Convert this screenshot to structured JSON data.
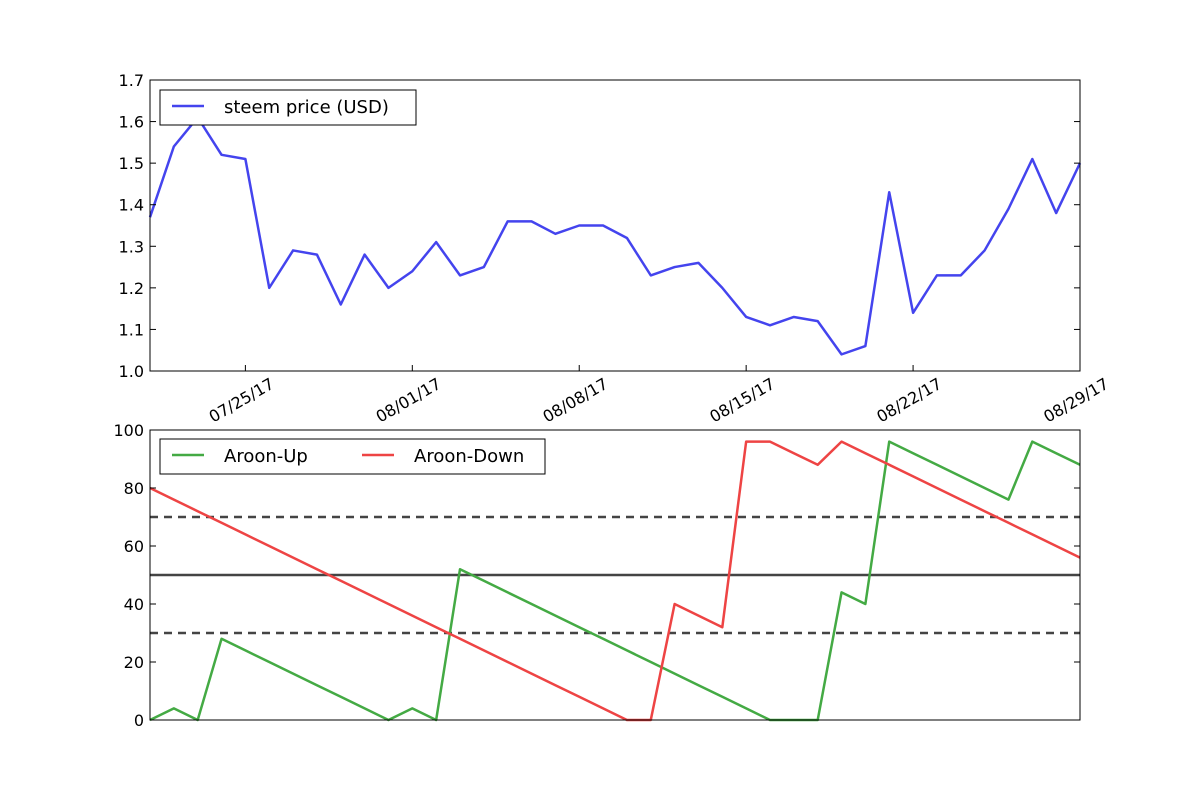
{
  "chart_data": [
    {
      "type": "line",
      "title": "",
      "xlabel": "",
      "ylabel": "",
      "x_tick_labels": [
        "07/25/17",
        "08/01/17",
        "08/08/17",
        "08/15/17",
        "08/22/17",
        "08/29/17"
      ],
      "y_tick_labels": [
        "1.0",
        "1.1",
        "1.2",
        "1.3",
        "1.4",
        "1.5",
        "1.6",
        "1.7"
      ],
      "xlim": [
        "2017-07-21",
        "2017-08-29"
      ],
      "ylim": [
        1.0,
        1.7
      ],
      "grid": false,
      "legend": "top-left",
      "x": [
        "2017-07-21",
        "2017-07-22",
        "2017-07-23",
        "2017-07-24",
        "2017-07-25",
        "2017-07-26",
        "2017-07-27",
        "2017-07-28",
        "2017-07-29",
        "2017-07-30",
        "2017-07-31",
        "2017-08-01",
        "2017-08-02",
        "2017-08-03",
        "2017-08-04",
        "2017-08-05",
        "2017-08-06",
        "2017-08-07",
        "2017-08-08",
        "2017-08-09",
        "2017-08-10",
        "2017-08-11",
        "2017-08-12",
        "2017-08-13",
        "2017-08-14",
        "2017-08-15",
        "2017-08-16",
        "2017-08-17",
        "2017-08-18",
        "2017-08-19",
        "2017-08-20",
        "2017-08-21",
        "2017-08-22",
        "2017-08-23",
        "2017-08-24",
        "2017-08-25",
        "2017-08-26",
        "2017-08-27",
        "2017-08-28",
        "2017-08-29"
      ],
      "series": [
        {
          "name": "steem price (USD)",
          "color": "#4444ee",
          "values": [
            1.37,
            1.54,
            1.61,
            1.52,
            1.51,
            1.2,
            1.29,
            1.28,
            1.16,
            1.28,
            1.2,
            1.24,
            1.31,
            1.23,
            1.25,
            1.36,
            1.36,
            1.33,
            1.35,
            1.35,
            1.32,
            1.23,
            1.25,
            1.26,
            1.2,
            1.13,
            1.11,
            1.13,
            1.12,
            1.04,
            1.06,
            1.43,
            1.14,
            1.23,
            1.23,
            1.29,
            1.39,
            1.51,
            1.38,
            1.5
          ]
        }
      ]
    },
    {
      "type": "line",
      "title": "",
      "xlabel": "",
      "ylabel": "",
      "y_tick_labels": [
        "0",
        "20",
        "40",
        "60",
        "80",
        "100"
      ],
      "ylim": [
        0,
        100
      ],
      "grid": false,
      "legend": "top-left",
      "reference_lines": [
        {
          "y": 70,
          "style": "dashed",
          "color": "#444444"
        },
        {
          "y": 50,
          "style": "solid",
          "color": "#444444"
        },
        {
          "y": 30,
          "style": "dashed",
          "color": "#444444"
        }
      ],
      "series": [
        {
          "name": "Aroon-Up",
          "color": "#44aa44",
          "values": [
            0,
            4,
            0,
            28,
            24,
            20,
            16,
            12,
            8,
            4,
            0,
            4,
            0,
            52,
            48,
            44,
            40,
            36,
            32,
            28,
            24,
            20,
            16,
            12,
            8,
            4,
            0,
            0,
            0,
            44,
            40,
            96,
            92,
            88,
            84,
            80,
            76,
            96,
            92,
            88
          ]
        },
        {
          "name": "Aroon-Down",
          "color": "#ee4444",
          "values": [
            80,
            76,
            72,
            68,
            64,
            60,
            56,
            52,
            48,
            44,
            40,
            36,
            32,
            28,
            24,
            20,
            16,
            12,
            8,
            4,
            0,
            0,
            40,
            36,
            32,
            96,
            96,
            92,
            88,
            96,
            92,
            88,
            84,
            80,
            76,
            72,
            68,
            64,
            60,
            56
          ]
        }
      ]
    }
  ]
}
